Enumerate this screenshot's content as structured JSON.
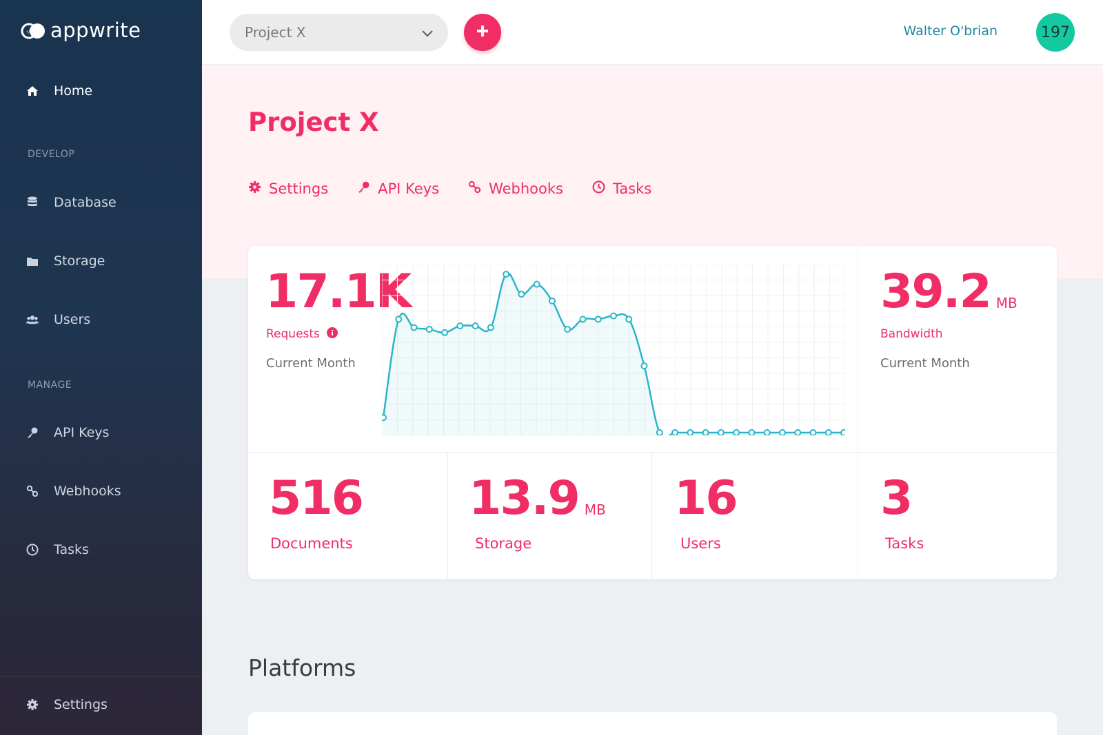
{
  "sidebar": {
    "logo_text": "appwrite",
    "home": "Home",
    "develop_section": "DEVELOP",
    "develop_items": [
      "Database",
      "Storage",
      "Users"
    ],
    "manage_section": "MANAGE",
    "manage_items": [
      "API Keys",
      "Webhooks",
      "Tasks"
    ],
    "settings": "Settings"
  },
  "topbar": {
    "project_selected": "Project X",
    "user_name": "Walter O'brian",
    "avatar_text": "197"
  },
  "header": {
    "title": "Project X",
    "tabs": [
      "Settings",
      "API Keys",
      "Webhooks",
      "Tasks"
    ]
  },
  "stats": {
    "requests": {
      "value": "17.1K",
      "label": "Requests",
      "period": "Current Month"
    },
    "bandwidth": {
      "value": "39.2",
      "unit": "MB",
      "label": "Bandwidth",
      "period": "Current Month"
    },
    "documents": {
      "value": "516",
      "label": "Documents"
    },
    "storage": {
      "value": "13.9",
      "unit": "MB",
      "label": "Storage"
    },
    "users": {
      "value": "16",
      "label": "Users"
    },
    "tasks": {
      "value": "3",
      "label": "Tasks"
    }
  },
  "chart_data": {
    "type": "area",
    "title": "",
    "xlabel": "",
    "ylabel": "",
    "ylim": [
      0,
      100
    ],
    "grid": true,
    "x": [
      1,
      2,
      3,
      4,
      5,
      6,
      7,
      8,
      9,
      10,
      11,
      12,
      13,
      14,
      15,
      16,
      17,
      18,
      19,
      20,
      21,
      22,
      23,
      24,
      25,
      26,
      27,
      28,
      29,
      30,
      31
    ],
    "values": [
      9,
      68,
      63,
      62,
      60,
      64,
      64,
      63,
      95,
      83,
      89,
      79,
      62,
      68,
      68,
      70,
      68,
      40,
      0,
      0,
      0,
      0,
      0,
      0,
      0,
      0,
      0,
      0,
      0,
      0,
      0
    ],
    "color": "#29b5c8"
  },
  "sections": {
    "platforms": "Platforms"
  },
  "colors": {
    "accent": "#f02e65",
    "teal": "#12c9a0",
    "chart": "#29b5c8"
  }
}
